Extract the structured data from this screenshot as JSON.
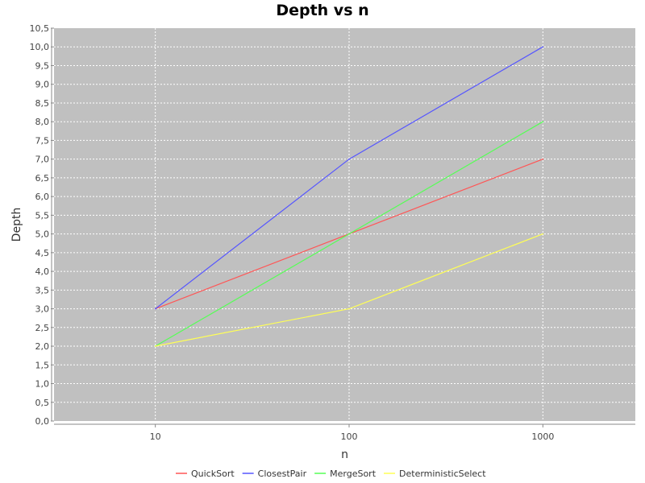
{
  "chart_data": {
    "type": "line",
    "title": "Depth vs n",
    "xlabel": "n",
    "ylabel": "Depth",
    "x_scale": "log",
    "xlim": [
      3,
      3000
    ],
    "ylim": [
      0,
      10.5
    ],
    "x": [
      10,
      100,
      1000
    ],
    "x_tick_labels": [
      "10",
      "100",
      "1000"
    ],
    "y_ticks": [
      0,
      0.5,
      1,
      1.5,
      2,
      2.5,
      3,
      3.5,
      4,
      4.5,
      5,
      5.5,
      6,
      6.5,
      7,
      7.5,
      8,
      8.5,
      9,
      9.5,
      10,
      10.5
    ],
    "y_tick_labels": [
      "0,0",
      "0,5",
      "1,0",
      "1,5",
      "2,0",
      "2,5",
      "3,0",
      "3,5",
      "4,0",
      "4,5",
      "5,0",
      "5,5",
      "6,0",
      "6,5",
      "7,0",
      "7,5",
      "8,0",
      "8,5",
      "9,0",
      "9,5",
      "10,0",
      "10,5"
    ],
    "grid": true,
    "legend_position": "bottom",
    "plot_background": "#c0c0c0",
    "series": [
      {
        "name": "QuickSort",
        "values": [
          3,
          5,
          7
        ],
        "color": "#ff5555"
      },
      {
        "name": "ClosestPair",
        "values": [
          3,
          7,
          10
        ],
        "color": "#5555ff"
      },
      {
        "name": "MergeSort",
        "values": [
          2,
          5,
          8
        ],
        "color": "#55ff55"
      },
      {
        "name": "DeterministicSelect",
        "values": [
          2,
          3,
          5
        ],
        "color": "#ffff55"
      }
    ]
  }
}
